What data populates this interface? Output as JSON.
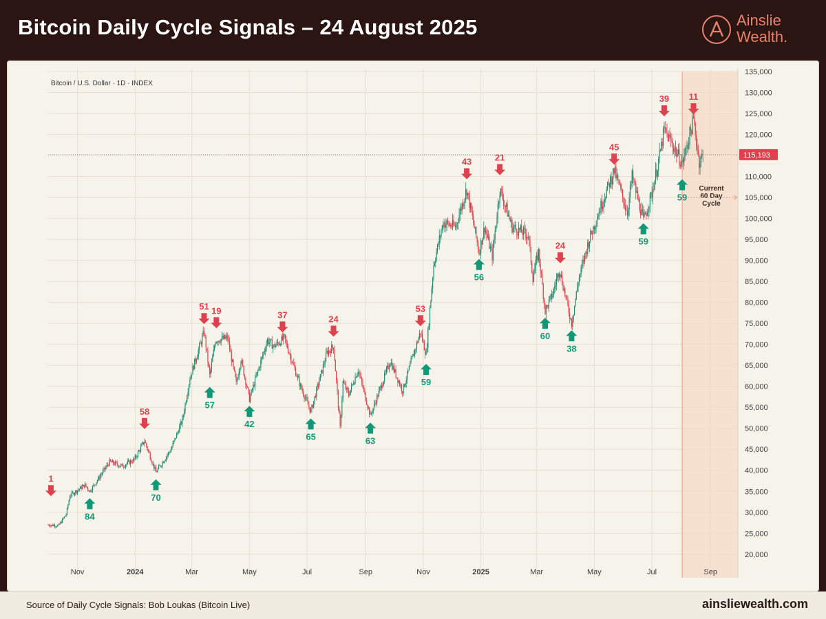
{
  "header": {
    "title": "Bitcoin Daily Cycle Signals – 24 August 2025",
    "logo_line1": "Ainslie",
    "logo_line2": "Wealth.",
    "logo_icon": "ainslie-a-logo-icon"
  },
  "footer": {
    "source": "Source of Daily Cycle Signals: Bob Loukas (Bitcoin Live)",
    "site": "ainsliewealth.com"
  },
  "colors": {
    "up_candle": "#1f8a70",
    "down_candle": "#e0414e",
    "signal_up": "#119877",
    "signal_down": "#e0414e",
    "cycle_shade": "#f6d7c2",
    "cycle_line": "#f29a84",
    "price_tag": "#e0414e",
    "brand": "#e7826b"
  },
  "chart_data": {
    "type": "candlestick",
    "subtitle": "Bitcoin / U.S. Dollar · 1D · INDEX",
    "y_axis": {
      "min": 18000,
      "max": 135000,
      "ticks": [
        135000,
        130000,
        125000,
        120000,
        115000,
        110000,
        105000,
        100000,
        95000,
        90000,
        85000,
        80000,
        75000,
        70000,
        65000,
        60000,
        55000,
        50000,
        45000,
        40000,
        35000,
        30000,
        25000,
        20000
      ],
      "tick_labels": [
        "135,000",
        "130,000",
        "125,000",
        "120,000",
        "115,000",
        "110,000",
        "105,000",
        "100,000",
        "95,000",
        "90,000",
        "85,000",
        "80,000",
        "75,000",
        "70,000",
        "65,000",
        "60,000",
        "55,000",
        "50,000",
        "45,000",
        "40,000",
        "35,000",
        "30,000",
        "25,000",
        "20,000"
      ],
      "position": "right",
      "grid": true
    },
    "x_axis": {
      "start": "2023-10-01",
      "end": "2025-09-30",
      "ticks": [
        {
          "date": "2023-11-01",
          "label": "Nov",
          "bold": false
        },
        {
          "date": "2024-01-01",
          "label": "2024",
          "bold": true
        },
        {
          "date": "2024-03-01",
          "label": "Mar",
          "bold": false
        },
        {
          "date": "2024-05-01",
          "label": "May",
          "bold": false
        },
        {
          "date": "2024-07-01",
          "label": "Jul",
          "bold": false
        },
        {
          "date": "2024-09-01",
          "label": "Sep",
          "bold": false
        },
        {
          "date": "2024-11-01",
          "label": "Nov",
          "bold": false
        },
        {
          "date": "2025-01-01",
          "label": "2025",
          "bold": true
        },
        {
          "date": "2025-03-01",
          "label": "Mar",
          "bold": false
        },
        {
          "date": "2025-05-01",
          "label": "May",
          "bold": false
        },
        {
          "date": "2025-07-01",
          "label": "Jul",
          "bold": false
        },
        {
          "date": "2025-09-01",
          "label": "Sep",
          "bold": false
        }
      ]
    },
    "price_path": [
      [
        "2023-10-01",
        27000
      ],
      [
        "2023-10-12",
        26800
      ],
      [
        "2023-10-20",
        29500
      ],
      [
        "2023-10-24",
        34000
      ],
      [
        "2023-11-09",
        36500
      ],
      [
        "2023-11-14",
        35000
      ],
      [
        "2023-12-05",
        42000
      ],
      [
        "2023-12-18",
        41000
      ],
      [
        "2023-12-31",
        42500
      ],
      [
        "2024-01-11",
        47000
      ],
      [
        "2024-01-23",
        39500
      ],
      [
        "2024-02-08",
        45000
      ],
      [
        "2024-02-20",
        52000
      ],
      [
        "2024-02-28",
        62000
      ],
      [
        "2024-03-14",
        73000
      ],
      [
        "2024-03-20",
        62500
      ],
      [
        "2024-03-26",
        71000
      ],
      [
        "2024-04-08",
        71500
      ],
      [
        "2024-04-17",
        60500
      ],
      [
        "2024-04-22",
        66500
      ],
      [
        "2024-05-01",
        57000
      ],
      [
        "2024-05-20",
        71000
      ],
      [
        "2024-05-27",
        69500
      ],
      [
        "2024-06-07",
        71500
      ],
      [
        "2024-06-24",
        60000
      ],
      [
        "2024-07-05",
        54000
      ],
      [
        "2024-07-22",
        68000
      ],
      [
        "2024-07-29",
        69500
      ],
      [
        "2024-08-05",
        50000
      ],
      [
        "2024-08-08",
        61000
      ],
      [
        "2024-08-14",
        58000
      ],
      [
        "2024-08-24",
        64000
      ],
      [
        "2024-09-06",
        53000
      ],
      [
        "2024-09-27",
        66000
      ],
      [
        "2024-10-10",
        59000
      ],
      [
        "2024-10-29",
        73000
      ],
      [
        "2024-11-04",
        67500
      ],
      [
        "2024-11-12",
        89000
      ],
      [
        "2024-11-22",
        99000
      ],
      [
        "2024-12-05",
        98000
      ],
      [
        "2024-12-17",
        107000
      ],
      [
        "2024-12-30",
        92000
      ],
      [
        "2025-01-05",
        98000
      ],
      [
        "2025-01-13",
        91000
      ],
      [
        "2025-01-21",
        107000
      ],
      [
        "2025-02-03",
        98000
      ],
      [
        "2025-02-20",
        96000
      ],
      [
        "2025-02-25",
        86000
      ],
      [
        "2025-03-03",
        92000
      ],
      [
        "2025-03-10",
        78000
      ],
      [
        "2025-03-18",
        82000
      ],
      [
        "2025-03-25",
        88000
      ],
      [
        "2025-04-07",
        75000
      ],
      [
        "2025-04-14",
        85000
      ],
      [
        "2025-04-25",
        94500
      ],
      [
        "2025-05-08",
        103000
      ],
      [
        "2025-05-22",
        111500
      ],
      [
        "2025-06-05",
        101500
      ],
      [
        "2025-06-10",
        110000
      ],
      [
        "2025-06-22",
        99500
      ],
      [
        "2025-07-01",
        106000
      ],
      [
        "2025-07-10",
        116000
      ],
      [
        "2025-07-14",
        121000
      ],
      [
        "2025-07-22",
        118000
      ],
      [
        "2025-08-02",
        113000
      ],
      [
        "2025-08-14",
        123500
      ],
      [
        "2025-08-20",
        113500
      ],
      [
        "2025-08-24",
        115193
      ]
    ],
    "last_price": 115193,
    "last_price_label": "115,193",
    "signals_down": [
      {
        "date": "2023-10-01",
        "price": 33500,
        "label": "1"
      },
      {
        "date": "2024-01-11",
        "price": 49500,
        "label": "58"
      },
      {
        "date": "2024-03-14",
        "price": 74500,
        "label": "51"
      },
      {
        "date": "2024-03-27",
        "price": 73500,
        "label": "19"
      },
      {
        "date": "2024-06-05",
        "price": 72500,
        "label": "37"
      },
      {
        "date": "2024-07-29",
        "price": 71500,
        "label": "24"
      },
      {
        "date": "2024-10-29",
        "price": 74000,
        "label": "53"
      },
      {
        "date": "2024-12-17",
        "price": 109000,
        "label": "43"
      },
      {
        "date": "2025-01-21",
        "price": 110000,
        "label": "21"
      },
      {
        "date": "2025-03-26",
        "price": 89000,
        "label": "24"
      },
      {
        "date": "2025-05-22",
        "price": 112500,
        "label": "45"
      },
      {
        "date": "2025-07-14",
        "price": 124000,
        "label": "39"
      },
      {
        "date": "2025-08-14",
        "price": 124500,
        "label": "11"
      }
    ],
    "signals_up": [
      {
        "date": "2023-11-14",
        "price": 34000,
        "label": "84"
      },
      {
        "date": "2024-01-23",
        "price": 38500,
        "label": "70"
      },
      {
        "date": "2024-03-20",
        "price": 60500,
        "label": "57"
      },
      {
        "date": "2024-05-01",
        "price": 56000,
        "label": "42"
      },
      {
        "date": "2024-07-05",
        "price": 53000,
        "label": "65"
      },
      {
        "date": "2024-09-06",
        "price": 52000,
        "label": "63"
      },
      {
        "date": "2024-11-04",
        "price": 66000,
        "label": "59"
      },
      {
        "date": "2024-12-30",
        "price": 91000,
        "label": "56"
      },
      {
        "date": "2025-03-10",
        "price": 77000,
        "label": "60"
      },
      {
        "date": "2025-04-07",
        "price": 74000,
        "label": "38"
      },
      {
        "date": "2025-06-22",
        "price": 99500,
        "label": "59"
      },
      {
        "date": "2025-08-02",
        "price": 110000,
        "label": "59"
      }
    ],
    "cycle_window": {
      "start": "2025-08-02",
      "end": "2025-09-30",
      "label_line1": "Current",
      "label_line2": "60 Day",
      "label_line3": "Cycle",
      "label_price": 105000
    }
  }
}
